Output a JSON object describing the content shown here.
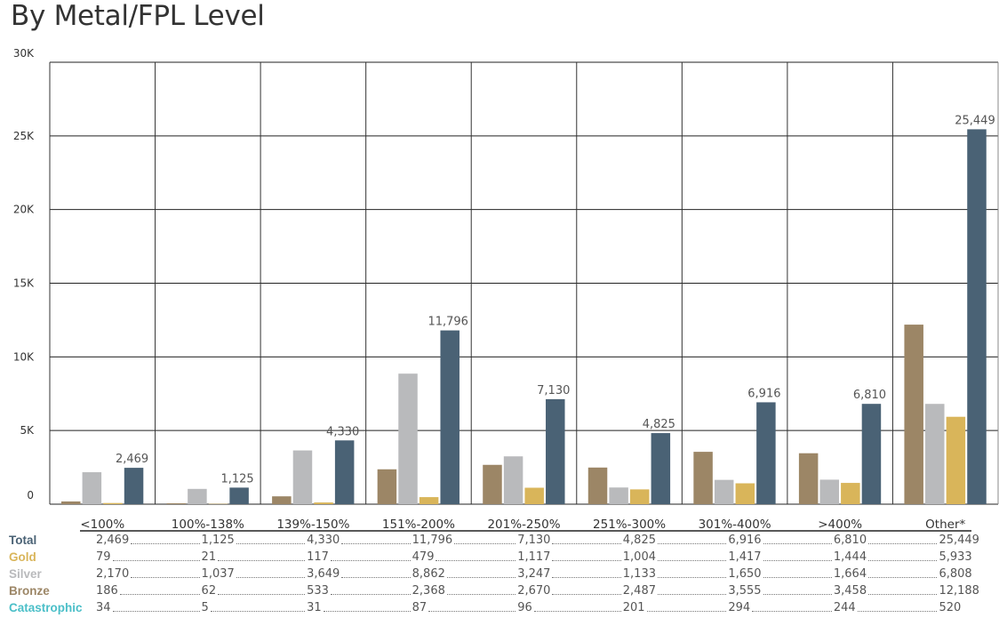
{
  "title": "By Metal/FPL Level",
  "chart_data": {
    "type": "bar",
    "title": "By Metal/FPL Level",
    "categories": [
      "<100%",
      "100%-138%",
      "139%-150%",
      "151%-200%",
      "201%-250%",
      "251%-300%",
      "301%-400%",
      ">400%",
      "Other*"
    ],
    "ylim": [
      0,
      30000
    ],
    "yticks": [
      0,
      5000,
      10000,
      15000,
      20000,
      25000,
      30000
    ],
    "ytick_labels": [
      "0",
      "5K",
      "10K",
      "15K",
      "20K",
      "25K",
      "30K"
    ],
    "grid": true,
    "series": [
      {
        "name": "Bronze",
        "color": "#9c8666",
        "values": [
          186,
          62,
          533,
          2368,
          2670,
          2487,
          3555,
          3458,
          12188
        ]
      },
      {
        "name": "Silver",
        "color": "#b9babc",
        "values": [
          2170,
          1037,
          3649,
          8862,
          3247,
          1133,
          1650,
          1664,
          6808
        ]
      },
      {
        "name": "Gold",
        "color": "#d9b55a",
        "values": [
          79,
          21,
          117,
          479,
          1117,
          1004,
          1417,
          1444,
          5933
        ]
      },
      {
        "name": "Total",
        "color": "#4a6275",
        "values": [
          2469,
          1125,
          4330,
          11796,
          7130,
          4825,
          6916,
          6810,
          25449
        ]
      }
    ],
    "data_labels": [
      "2,469",
      "1,125",
      "4,330",
      "11,796",
      "7,130",
      "4,825",
      "6,916",
      "6,810",
      "25,449"
    ],
    "table": [
      {
        "name": "Total",
        "color": "#4a6275",
        "cells": [
          "2,469",
          "1,125",
          "4,330",
          "11,796",
          "7,130",
          "4,825",
          "6,916",
          "6,810",
          "25,449"
        ]
      },
      {
        "name": "Gold",
        "color": "#d9b55a",
        "cells": [
          "79",
          "21",
          "117",
          "479",
          "1,117",
          "1,004",
          "1,417",
          "1,444",
          "5,933"
        ]
      },
      {
        "name": "Silver",
        "color": "#b9babc",
        "cells": [
          "2,170",
          "1,037",
          "3,649",
          "8,862",
          "3,247",
          "1,133",
          "1,650",
          "1,664",
          "6,808"
        ]
      },
      {
        "name": "Bronze",
        "color": "#9c8666",
        "cells": [
          "186",
          "62",
          "533",
          "2,368",
          "2,670",
          "2,487",
          "3,555",
          "3,458",
          "12,188"
        ]
      },
      {
        "name": "Catastrophic",
        "color": "#4bbfc8",
        "cells": [
          "34",
          "5",
          "31",
          "87",
          "96",
          "201",
          "294",
          "244",
          "520"
        ]
      }
    ]
  }
}
